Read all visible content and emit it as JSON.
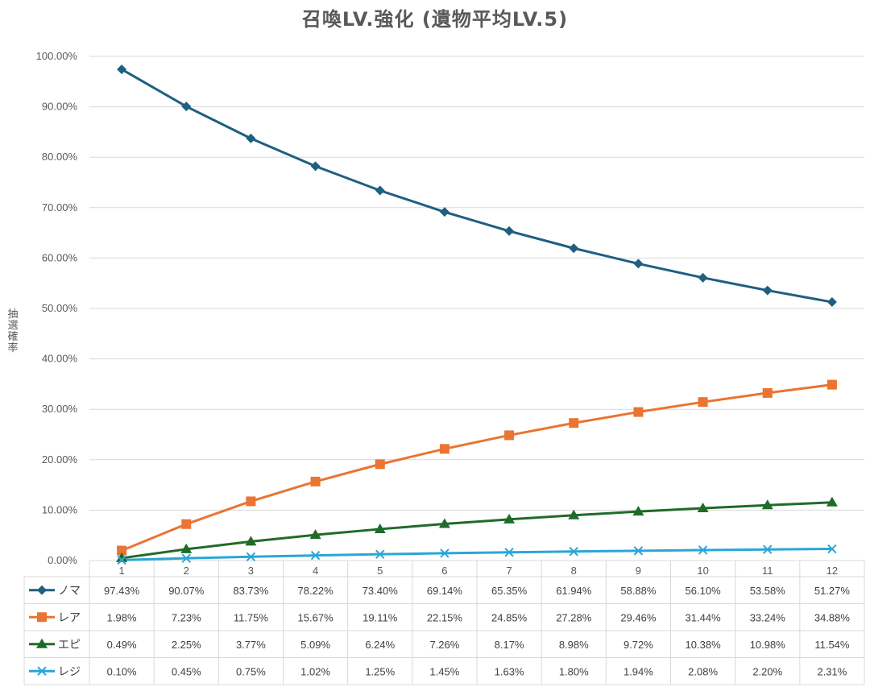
{
  "chart_data": {
    "type": "line",
    "title": "召喚LV.強化 (遺物平均LV.5)",
    "ylabel": "抽選確率",
    "xlabel": "",
    "ylim": [
      0,
      100
    ],
    "y_unit": "%",
    "y_ticks": [
      "0.00%",
      "10.00%",
      "20.00%",
      "30.00%",
      "40.00%",
      "50.00%",
      "60.00%",
      "70.00%",
      "80.00%",
      "90.00%",
      "100.00%"
    ],
    "grid": true,
    "legend": "data-table",
    "categories": [
      "1",
      "2",
      "3",
      "4",
      "5",
      "6",
      "7",
      "8",
      "9",
      "10",
      "11",
      "12"
    ],
    "series": [
      {
        "name": "ノマ",
        "color": "#1f5f80",
        "marker": "diamond",
        "values": [
          97.43,
          90.07,
          83.73,
          78.22,
          73.4,
          69.14,
          65.35,
          61.94,
          58.88,
          56.1,
          53.58,
          51.27
        ],
        "labels": [
          "97.43%",
          "90.07%",
          "83.73%",
          "78.22%",
          "73.40%",
          "69.14%",
          "65.35%",
          "61.94%",
          "58.88%",
          "56.10%",
          "53.58%",
          "51.27%"
        ]
      },
      {
        "name": "レア",
        "color": "#ea7432",
        "marker": "square",
        "values": [
          1.98,
          7.23,
          11.75,
          15.67,
          19.11,
          22.15,
          24.85,
          27.28,
          29.46,
          31.44,
          33.24,
          34.88
        ],
        "labels": [
          "1.98%",
          "7.23%",
          "11.75%",
          "15.67%",
          "19.11%",
          "22.15%",
          "24.85%",
          "27.28%",
          "29.46%",
          "31.44%",
          "33.24%",
          "34.88%"
        ]
      },
      {
        "name": "エピ",
        "color": "#1f6b2a",
        "marker": "triangle",
        "values": [
          0.49,
          2.25,
          3.77,
          5.09,
          6.24,
          7.26,
          8.17,
          8.98,
          9.72,
          10.38,
          10.98,
          11.54
        ],
        "labels": [
          "0.49%",
          "2.25%",
          "3.77%",
          "5.09%",
          "6.24%",
          "7.26%",
          "8.17%",
          "8.98%",
          "9.72%",
          "10.38%",
          "10.98%",
          "11.54%"
        ]
      },
      {
        "name": "レジ",
        "color": "#2aa6d6",
        "marker": "x",
        "values": [
          0.1,
          0.45,
          0.75,
          1.02,
          1.25,
          1.45,
          1.63,
          1.8,
          1.94,
          2.08,
          2.2,
          2.31
        ],
        "labels": [
          "0.10%",
          "0.45%",
          "0.75%",
          "1.02%",
          "1.25%",
          "1.45%",
          "1.63%",
          "1.80%",
          "1.94%",
          "2.08%",
          "2.20%",
          "2.31%"
        ]
      }
    ]
  }
}
